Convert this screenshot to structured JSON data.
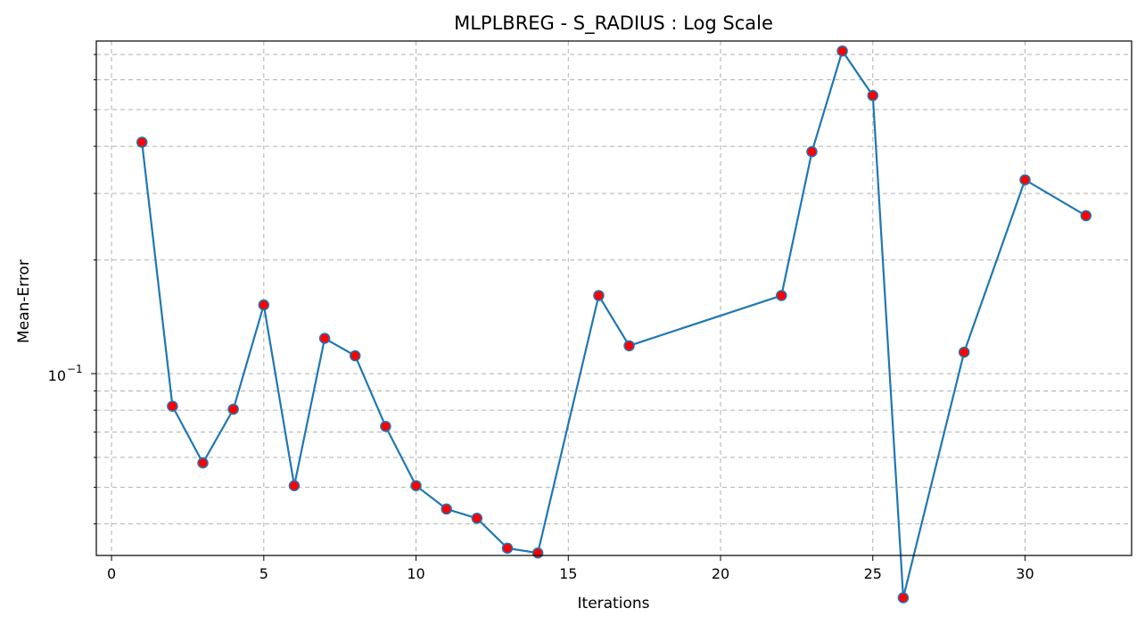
{
  "chart_data": {
    "type": "line",
    "title": "MLPLBREG - S_RADIUS : Log Scale",
    "xlabel": "Iterations",
    "ylabel": "Mean-Error",
    "yscale": "log",
    "grid": true,
    "xlim": [
      -0.5,
      33.5
    ],
    "ylim": [
      0.033,
      0.76
    ],
    "x_ticks": [
      0,
      5,
      10,
      15,
      20,
      25,
      30
    ],
    "y_major_ticks": [
      {
        "value": 0.1,
        "base": "10",
        "exp": "−1"
      }
    ],
    "y_minor_ticks": [
      0.04,
      0.05,
      0.06,
      0.07,
      0.08,
      0.09,
      0.2,
      0.3,
      0.4,
      0.5,
      0.6,
      0.7
    ],
    "colors": {
      "line": "#1f77b4",
      "marker_face": "#ff0000",
      "marker_edge": "#1f77b4"
    },
    "series": [
      {
        "x": [
          1,
          2,
          3,
          4,
          5,
          6,
          7,
          8,
          9,
          10,
          11,
          12,
          13,
          14,
          16,
          17,
          22,
          23,
          24,
          25,
          26,
          28,
          30,
          32
        ],
        "y": [
          0.41,
          0.082,
          0.058,
          0.0805,
          0.152,
          0.0505,
          0.124,
          0.1115,
          0.0725,
          0.0505,
          0.0438,
          0.0414,
          0.0345,
          0.0335,
          0.161,
          0.1185,
          0.161,
          0.387,
          0.715,
          0.545,
          0.0255,
          0.114,
          0.326,
          0.262
        ]
      }
    ]
  }
}
